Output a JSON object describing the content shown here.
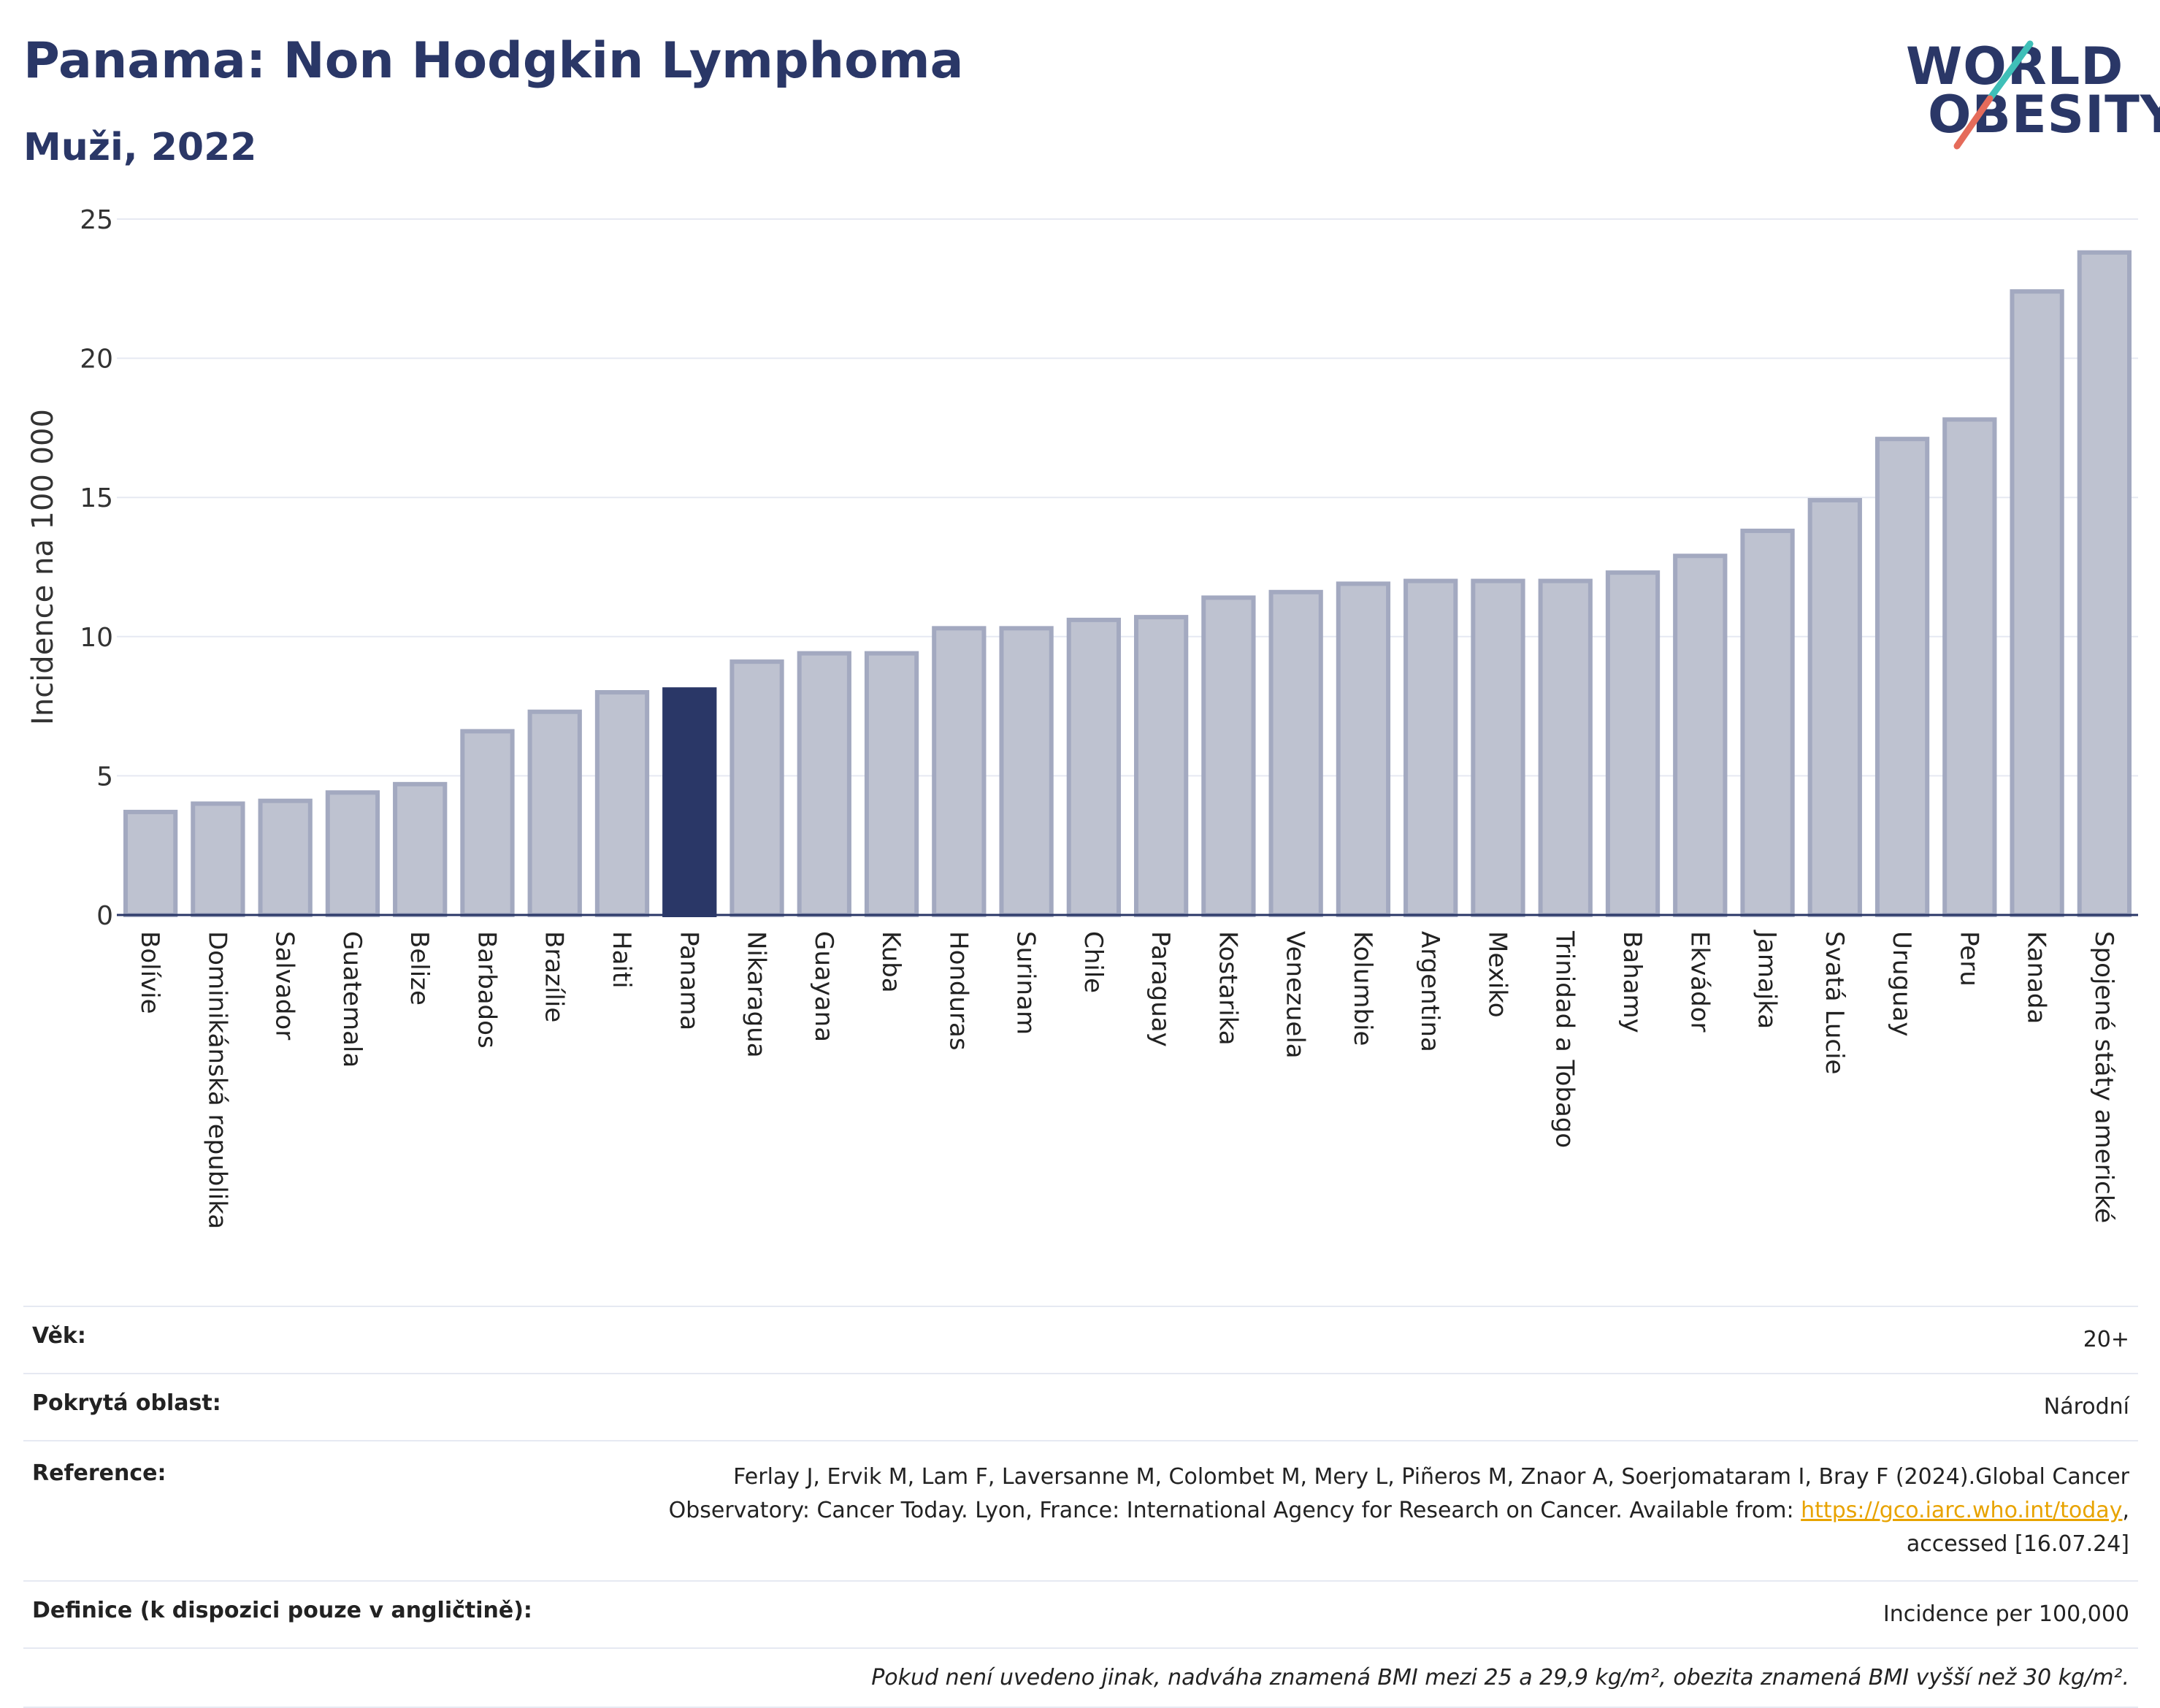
{
  "header": {
    "title": "Panama: Non Hodgkin Lymphoma",
    "subtitle": "Muži, 2022",
    "logo_line1": "WORLD",
    "logo_line2": "OBESITY"
  },
  "colors": {
    "bar": "#bec2d0",
    "bar_stroke": "#a3a9c0",
    "highlight": "#2a3767",
    "grid": "#e6e9f2",
    "axis": "#2a3767"
  },
  "chart_data": {
    "type": "bar",
    "title": "Panama: Non Hodgkin Lymphoma",
    "subtitle": "Muži, 2022",
    "xlabel": "",
    "ylabel": "Incidence na 100 000",
    "ylim": [
      0,
      25
    ],
    "yticks": [
      0,
      5,
      10,
      15,
      20,
      25
    ],
    "grid": true,
    "highlight": "Panama",
    "categories": [
      "Bolívie",
      "Dominikánská republika",
      "Salvador",
      "Guatemala",
      "Belize",
      "Barbados",
      "Brazílie",
      "Haiti",
      "Panama",
      "Nikaragua",
      "Guayana",
      "Kuba",
      "Honduras",
      "Surinam",
      "Chile",
      "Paraguay",
      "Kostarika",
      "Venezuela",
      "Kolumbie",
      "Argentina",
      "Mexiko",
      "Trinidad a Tobago",
      "Bahamy",
      "Ekvádor",
      "Jamajka",
      "Svatá Lucie",
      "Uruguay",
      "Peru",
      "Kanada",
      "Spojené státy americké"
    ],
    "values": [
      3.7,
      4.0,
      4.1,
      4.4,
      4.7,
      6.6,
      7.3,
      8.0,
      8.1,
      9.1,
      9.4,
      9.4,
      10.3,
      10.3,
      10.6,
      10.7,
      11.4,
      11.6,
      11.9,
      12.0,
      12.0,
      12.0,
      12.3,
      12.9,
      13.8,
      14.9,
      17.1,
      17.8,
      22.4,
      23.8
    ]
  },
  "info": {
    "age_label": "Věk:",
    "age_value": "20+",
    "coverage_label": "Pokrytá oblast:",
    "coverage_value": "Národní",
    "reference_label": "Reference:",
    "reference_text_1": "Ferlay J, Ervik M, Lam F, Laversanne M, Colombet M, Mery L, Piñeros M, Znaor A, Soerjomataram I, Bray F (2024).Global Cancer",
    "reference_text_2": "Observatory: Cancer Today. Lyon, France: International Agency for Research on Cancer. Available from: ",
    "reference_link": "https://gco.iarc.who.int/today",
    "reference_text_3": ",",
    "reference_text_4": "accessed [16.07.24]",
    "definition_label": "Definice (k dispozici pouze v angličtině):",
    "definition_value": "Incidence per 100,000",
    "note": "Pokud není uvedeno jinak, nadváha znamená BMI mezi 25 a 29,9 kg/m², obezita znamená BMI vyšší než 30 kg/m²."
  }
}
